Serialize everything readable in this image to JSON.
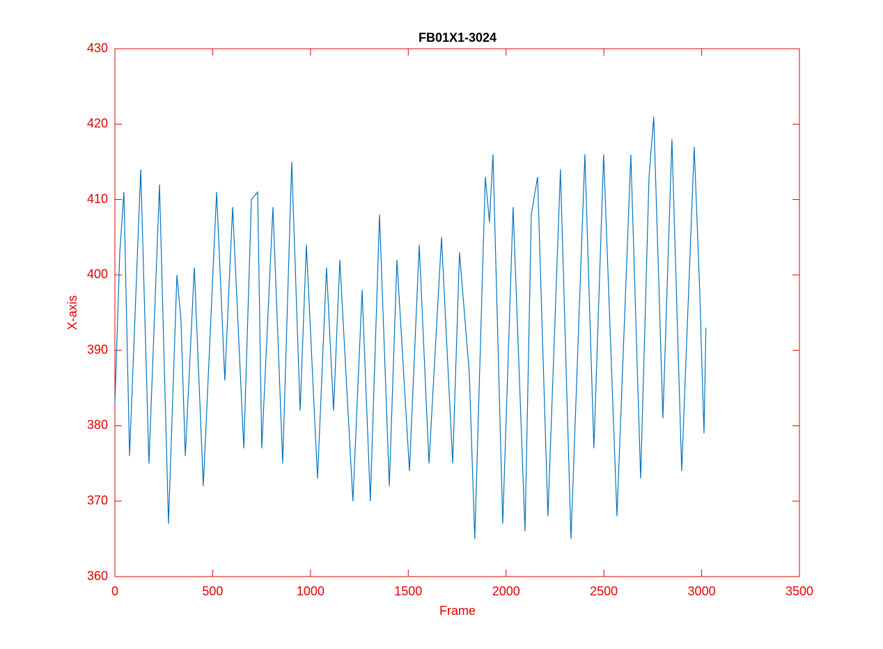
{
  "chart_data": {
    "type": "line",
    "title": "FB01X1-3024",
    "x_label": "Frame",
    "y_label": "X-axis",
    "series": [
      {
        "name": "X-axis",
        "color": "#0072bd",
        "x": [
          0,
          25,
          46,
          75,
          132,
          174,
          228,
          274,
          317,
          338,
          360,
          406,
          452,
          520,
          562,
          602,
          659,
          698,
          730,
          751,
          808,
          858,
          904,
          947,
          979,
          1036,
          1082,
          1118,
          1150,
          1217,
          1264,
          1306,
          1353,
          1403,
          1442,
          1506,
          1556,
          1606,
          1670,
          1727,
          1762,
          1812,
          1840,
          1894,
          1915,
          1933,
          1983,
          2036,
          2097,
          2129,
          2161,
          2214,
          2278,
          2332,
          2403,
          2449,
          2499,
          2567,
          2638,
          2688,
          2731,
          2755,
          2802,
          2848,
          2898,
          2962,
          2990,
          3012,
          3022
        ],
        "values": [
          383,
          403,
          411,
          376,
          414,
          375,
          412,
          367,
          400,
          394,
          376,
          401,
          372,
          411,
          386,
          409,
          377,
          410,
          411,
          377,
          409,
          375,
          415,
          382,
          404,
          373,
          401,
          382,
          402,
          370,
          398,
          370,
          408,
          372,
          402,
          374,
          404,
          375,
          405,
          375,
          403,
          387,
          365,
          413,
          407,
          416,
          367,
          409,
          366,
          408,
          413,
          368,
          414,
          365,
          416,
          377,
          416,
          368,
          416,
          373,
          413,
          421,
          381,
          418,
          374,
          417,
          398,
          379,
          393
        ]
      }
    ],
    "xlim": [
      0,
      3500
    ],
    "xticks": [
      0,
      500,
      1000,
      1500,
      2000,
      2500,
      3000,
      3500
    ],
    "ylim": [
      360,
      430
    ],
    "yticks": [
      360,
      370,
      380,
      390,
      400,
      410,
      420,
      430
    ]
  }
}
